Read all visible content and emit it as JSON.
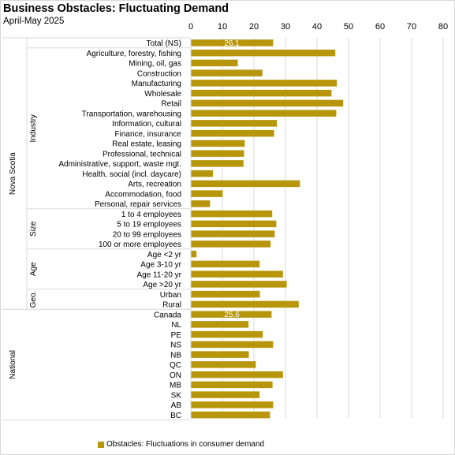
{
  "title": "Business Obstacles: Fluctuating Demand",
  "subtitle": "April-May 2025",
  "legend": {
    "label": "Obstacles: Fluctuations in consumer demand"
  },
  "colors": {
    "bar": "#B8960C",
    "grid": "#d9d9d9",
    "label_on_bar": "#ffffff"
  },
  "chart_data": {
    "type": "bar",
    "orientation": "horizontal",
    "xlim": [
      0,
      80
    ],
    "xticks": [
      0,
      10,
      20,
      30,
      40,
      50,
      60,
      70,
      80
    ],
    "grid": true,
    "legend_position": "bottom",
    "series": [
      {
        "name": "Obstacles: Fluctuations in consumer demand"
      }
    ],
    "groups": [
      {
        "outer": "Nova Scotia",
        "inner": "",
        "rows": [
          {
            "label": "Total (NS)",
            "value": 26.1,
            "data_label": "26.1"
          }
        ]
      },
      {
        "outer": "Nova Scotia",
        "inner": "Industry",
        "rows": [
          {
            "label": "Agriculture, forestry, fishing",
            "value": 45.8
          },
          {
            "label": "Mining, oil, gas",
            "value": 14.9
          },
          {
            "label": "Construction",
            "value": 22.7
          },
          {
            "label": "Manufacturing",
            "value": 46.3
          },
          {
            "label": "Wholesale",
            "value": 44.6
          },
          {
            "label": "Retail",
            "value": 48.3
          },
          {
            "label": "Transportation, warehousing",
            "value": 46.1
          },
          {
            "label": "Information, cultural",
            "value": 27.3
          },
          {
            "label": "Finance, insurance",
            "value": 26.4
          },
          {
            "label": "Real estate, leasing",
            "value": 17.1
          },
          {
            "label": "Professional, technical",
            "value": 16.9
          },
          {
            "label": "Administrative, support, waste mgt.",
            "value": 16.7
          },
          {
            "label": "Health, social (incl. daycare)",
            "value": 7.0
          },
          {
            "label": "Arts, recreation",
            "value": 34.6
          },
          {
            "label": "Accommodation, food",
            "value": 10.1
          },
          {
            "label": "Personal, repair services",
            "value": 6.1
          }
        ]
      },
      {
        "outer": "Nova Scotia",
        "inner": "Size",
        "rows": [
          {
            "label": "1 to 4 employees",
            "value": 25.8
          },
          {
            "label": "5 to 19 employees",
            "value": 27.1
          },
          {
            "label": "20 to 99 employees",
            "value": 26.6
          },
          {
            "label": "100 or more employees",
            "value": 25.3
          }
        ]
      },
      {
        "outer": "Nova Scotia",
        "inner": "Age",
        "rows": [
          {
            "label": "Age <2 yr",
            "value": 1.8
          },
          {
            "label": "Age 3-10 yr",
            "value": 21.8
          },
          {
            "label": "Age 11-20 yr",
            "value": 29.2
          },
          {
            "label": "Age >20 yr",
            "value": 30.4
          }
        ]
      },
      {
        "outer": "Nova Scotia",
        "inner": "Geo.",
        "rows": [
          {
            "label": "Urban",
            "value": 21.9
          },
          {
            "label": "Rural",
            "value": 34.2
          }
        ]
      },
      {
        "outer": "National",
        "inner": "",
        "rows": [
          {
            "label": "Canada",
            "value": 25.6,
            "data_label": "25.6"
          },
          {
            "label": "NL",
            "value": 18.3
          },
          {
            "label": "PE",
            "value": 22.8
          },
          {
            "label": "NS",
            "value": 26.1
          },
          {
            "label": "NB",
            "value": 18.4
          },
          {
            "label": "QC",
            "value": 20.6
          },
          {
            "label": "ON",
            "value": 29.2
          },
          {
            "label": "MB",
            "value": 25.9
          },
          {
            "label": "SK",
            "value": 21.8
          },
          {
            "label": "AB",
            "value": 26.1
          },
          {
            "label": "BC",
            "value": 25.1
          }
        ]
      }
    ]
  }
}
